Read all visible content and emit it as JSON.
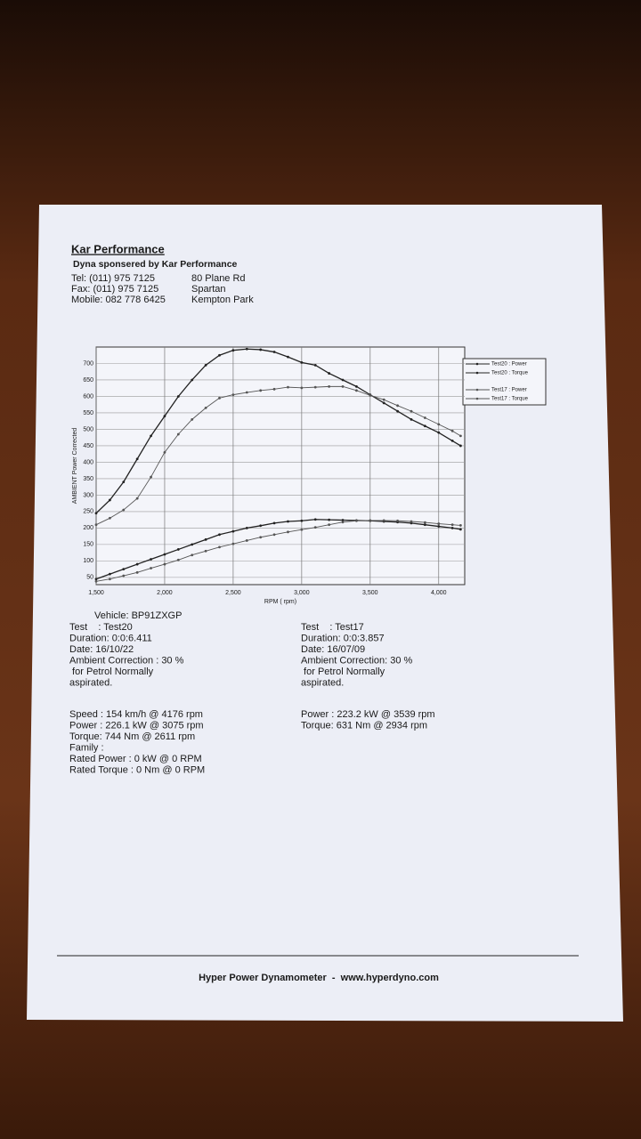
{
  "header": {
    "title": "Kar Performance",
    "subtitle": "Dyna sponsered by Kar Performance",
    "contact": [
      "Tel: (011) 975 7125",
      "Fax: (011) 975 7125",
      "Mobile: 082 778 6425"
    ],
    "address": [
      "80 Plane Rd",
      "Spartan",
      "Kempton Park"
    ]
  },
  "chart_data": {
    "type": "line",
    "xlabel": "RPM ( rpm)",
    "ylabel": "AMBIENT Power Corrected",
    "x": [
      1500,
      1600,
      1700,
      1800,
      1900,
      2000,
      2100,
      2200,
      2300,
      2400,
      2500,
      2600,
      2700,
      2800,
      2900,
      3000,
      3100,
      3200,
      3300,
      3400,
      3500,
      3600,
      3700,
      3800,
      3900,
      4000,
      4100,
      4160
    ],
    "xlim": [
      1500,
      4190
    ],
    "xticks": [
      {
        "value": 1500,
        "label": "1,500"
      },
      {
        "value": 2000,
        "label": "2,000"
      },
      {
        "value": 2500,
        "label": "2,500"
      },
      {
        "value": 3000,
        "label": "3,000"
      },
      {
        "value": 3500,
        "label": "3,500"
      },
      {
        "value": 4000,
        "label": "4,000"
      }
    ],
    "ylim": [
      28,
      750
    ],
    "yticks": [
      50,
      100,
      150,
      200,
      250,
      300,
      350,
      400,
      450,
      500,
      550,
      600,
      650,
      700
    ],
    "grid": true,
    "legend": "outside-right",
    "series": [
      {
        "name": "Test20 : Power",
        "color": "#222222",
        "values": [
          45,
          60,
          75,
          90,
          105,
          120,
          135,
          150,
          165,
          180,
          190,
          200,
          207,
          215,
          220,
          222,
          226,
          225,
          224,
          223,
          222,
          220,
          218,
          215,
          210,
          205,
          200,
          196
        ]
      },
      {
        "name": "Test20 : Torque",
        "color": "#222222",
        "values": [
          245,
          285,
          340,
          410,
          480,
          540,
          600,
          650,
          695,
          725,
          740,
          744,
          742,
          735,
          720,
          703,
          695,
          670,
          650,
          630,
          605,
          580,
          555,
          530,
          510,
          490,
          465,
          450
        ]
      },
      {
        "name": "Test17 : Power",
        "color": "#555555",
        "values": [
          38,
          45,
          55,
          65,
          78,
          90,
          103,
          118,
          130,
          142,
          152,
          162,
          172,
          180,
          188,
          195,
          202,
          210,
          218,
          222,
          223,
          223,
          222,
          220,
          217,
          213,
          210,
          208
        ]
      },
      {
        "name": "Test17 : Torque",
        "color": "#555555",
        "values": [
          210,
          230,
          255,
          290,
          355,
          430,
          485,
          530,
          565,
          595,
          605,
          612,
          618,
          622,
          628,
          626,
          628,
          630,
          630,
          618,
          603,
          590,
          572,
          555,
          535,
          515,
          495,
          480
        ]
      }
    ]
  },
  "vehicle": "Vehicle: BP91ZXGP",
  "test_left": [
    "Test    : Test20",
    "Duration: 0:0:6.411",
    "Date: 16/10/22",
    "Ambient Correction : 30 %",
    " for Petrol Normally",
    "aspirated."
  ],
  "test_right": [
    "Test    : Test17",
    "Duration: 0:0:3.857",
    "Date: 16/07/09",
    "Ambient Correction: 30 %",
    " for Petrol Normally",
    "aspirated."
  ],
  "results_left": [
    "Speed : 154 km/h @ 4176 rpm",
    "Power : 226.1 kW @ 3075 rpm",
    "Torque: 744 Nm @ 2611 rpm",
    "Family :",
    "Rated Power : 0 kW @ 0 RPM",
    "Rated Torque : 0 Nm @ 0 RPM"
  ],
  "results_right": [
    "Power : 223.2 kW @ 3539 rpm",
    "Torque: 631 Nm @ 2934 rpm"
  ],
  "footer": "Hyper Power Dynamometer  -  www.hyperdyno.com"
}
